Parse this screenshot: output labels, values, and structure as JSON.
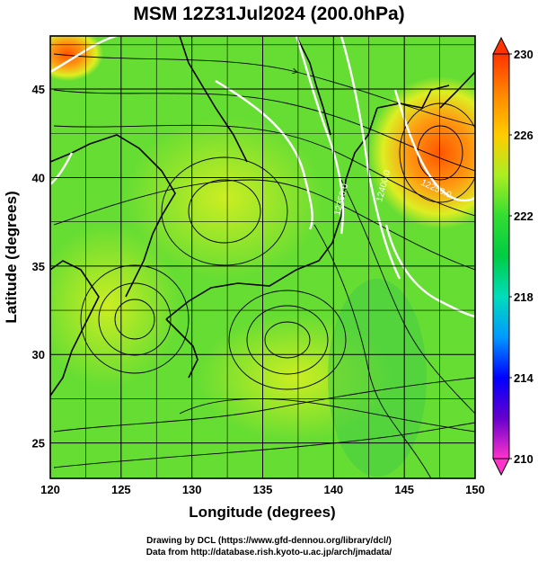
{
  "title": "MSM 12Z31Jul2024 (200.0hPa)",
  "xaxis": {
    "label": "Longitude (degrees)",
    "range": [
      120,
      150
    ],
    "ticks": [
      "120",
      "125",
      "130",
      "135",
      "140",
      "145",
      "150"
    ]
  },
  "yaxis": {
    "label": "Latitude  (degrees)",
    "range": [
      23,
      48
    ],
    "ticks": [
      "25",
      "30",
      "35",
      "40",
      "45"
    ]
  },
  "colorbar": {
    "range": [
      210,
      230
    ],
    "ticks": [
      "210",
      "214",
      "218",
      "222",
      "226",
      "230"
    ],
    "colors": [
      "#ff33cc",
      "#6600cc",
      "#0000ff",
      "#0099ff",
      "#00ddbb",
      "#00cc44",
      "#33dd33",
      "#aaee22",
      "#ffcc00",
      "#ff8800",
      "#ff3300"
    ]
  },
  "field_colors": {
    "base": "#66dd33",
    "warm_high": "#ff6600",
    "warm_mid": "#ffbb22",
    "yellow": "#ccee22",
    "contour": "#ffffff",
    "streamline": "#000000"
  },
  "contours": [
    {
      "label": "12400.0"
    },
    {
      "label": "12350.0"
    },
    {
      "label": "12250.0"
    }
  ],
  "credits": {
    "line1": "Drawing by DCL (https://www.gfd-dennou.org/library/dcl/)",
    "line2": "Data from http://database.rish.kyoto-u.ac.jp/arch/jmadata/"
  }
}
